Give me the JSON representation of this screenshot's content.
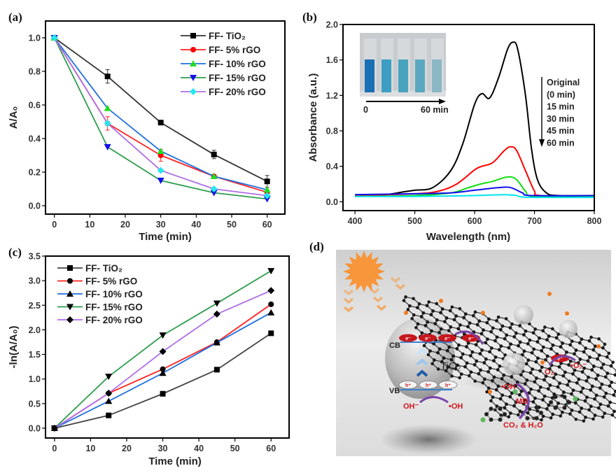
{
  "panel_labels": {
    "a": "(a)",
    "b": "(b)",
    "c": "(c)",
    "d": "(d)"
  },
  "chart_data": [
    {
      "id": "a",
      "type": "line",
      "xlabel": "Time (min)",
      "ylabel": "A/A₀",
      "xlim": [
        -2.5,
        65
      ],
      "ylim": [
        -0.05,
        1.1
      ],
      "xticks": [
        0,
        10,
        20,
        30,
        40,
        50,
        60
      ],
      "yticks": [
        0.0,
        0.2,
        0.4,
        0.6,
        0.8,
        1.0
      ],
      "ytick_decimals": 1,
      "legend": "top-right",
      "x": [
        0,
        15,
        30,
        45,
        60
      ],
      "series": [
        {
          "name": "FF- TiO₂",
          "line": "#333333",
          "marker": "square",
          "marker_color": "#000000",
          "values": [
            1.0,
            0.77,
            0.495,
            0.305,
            0.145
          ],
          "errors": [
            0,
            0.04,
            0.01,
            0.025,
            0.035
          ],
          "error_color": "#333333"
        },
        {
          "name": "FF- 5% rGO",
          "line": "#ff2020",
          "marker": "circle",
          "marker_color": "#ff0000",
          "values": [
            1.0,
            0.49,
            0.3,
            0.175,
            0.08
          ],
          "errors": [
            0,
            0.04,
            0.035,
            0,
            0
          ],
          "error_color": "#ff2020"
        },
        {
          "name": "FF- 10% rGO",
          "line": "#1f6fe0",
          "marker": "triangle-up",
          "marker_color": "#22dd22",
          "values": [
            1.0,
            0.58,
            0.325,
            0.175,
            0.095
          ]
        },
        {
          "name": "FF- 15% rGO",
          "line": "#2e9e4e",
          "marker": "triangle-down",
          "marker_color": "#1010ee",
          "values": [
            1.0,
            0.35,
            0.15,
            0.077,
            0.04
          ]
        },
        {
          "name": "FF- 20% rGO",
          "line": "#b06ee6",
          "marker": "diamond",
          "marker_color": "#22e8f0",
          "values": [
            1.0,
            0.49,
            0.21,
            0.1,
            0.06
          ]
        }
      ]
    },
    {
      "id": "b",
      "type": "line",
      "xlabel": "Wavelength (nm)",
      "ylabel": "Absorbance (a.u.)",
      "xlim": [
        380,
        800
      ],
      "ylim": [
        -0.1,
        2.0
      ],
      "xticks": [
        400,
        500,
        600,
        700,
        800
      ],
      "yticks": [
        0.0,
        0.4,
        0.8,
        1.2,
        1.6,
        2.0
      ],
      "ytick_decimals": 1,
      "series": [
        {
          "name": "Original (0 min)",
          "line": "#000000",
          "points": [
            [
              400,
              0.07
            ],
            [
              450,
              0.08
            ],
            [
              480,
              0.11
            ],
            [
              500,
              0.13
            ],
            [
              530,
              0.16
            ],
            [
              560,
              0.35
            ],
            [
              580,
              0.65
            ],
            [
              600,
              1.1
            ],
            [
              612,
              1.22
            ],
            [
              625,
              1.17
            ],
            [
              640,
              1.4
            ],
            [
              655,
              1.72
            ],
            [
              664,
              1.8
            ],
            [
              672,
              1.72
            ],
            [
              685,
              1.2
            ],
            [
              695,
              0.6
            ],
            [
              705,
              0.25
            ],
            [
              720,
              0.1
            ],
            [
              740,
              0.07
            ],
            [
              800,
              0.07
            ]
          ]
        },
        {
          "name": "15 min",
          "line": "#ff0000",
          "points": [
            [
              400,
              0.07
            ],
            [
              500,
              0.09
            ],
            [
              540,
              0.12
            ],
            [
              570,
              0.2
            ],
            [
              600,
              0.36
            ],
            [
              612,
              0.4
            ],
            [
              630,
              0.44
            ],
            [
              650,
              0.58
            ],
            [
              660,
              0.62
            ],
            [
              670,
              0.58
            ],
            [
              685,
              0.35
            ],
            [
              700,
              0.12
            ],
            [
              710,
              0.07
            ],
            [
              800,
              0.06
            ]
          ]
        },
        {
          "name": "30 min",
          "line": "#11dd11",
          "points": [
            [
              400,
              0.06
            ],
            [
              500,
              0.07
            ],
            [
              560,
              0.1
            ],
            [
              590,
              0.16
            ],
            [
              610,
              0.2
            ],
            [
              630,
              0.23
            ],
            [
              655,
              0.28
            ],
            [
              670,
              0.25
            ],
            [
              685,
              0.12
            ],
            [
              700,
              0.06
            ],
            [
              800,
              0.06
            ]
          ]
        },
        {
          "name": "45 min",
          "line": "#1010ee",
          "points": [
            [
              400,
              0.08
            ],
            [
              500,
              0.09
            ],
            [
              560,
              0.1
            ],
            [
              600,
              0.13
            ],
            [
              640,
              0.16
            ],
            [
              660,
              0.16
            ],
            [
              680,
              0.1
            ],
            [
              695,
              0.07
            ],
            [
              800,
              0.07
            ]
          ]
        },
        {
          "name": "60 min",
          "line": "#00e5f0",
          "points": [
            [
              400,
              0.06
            ],
            [
              500,
              0.06
            ],
            [
              600,
              0.07
            ],
            [
              650,
              0.08
            ],
            [
              670,
              0.07
            ],
            [
              690,
              0.05
            ],
            [
              800,
              0.05
            ]
          ]
        }
      ],
      "legend_lines": [
        "Original",
        "(0 min)",
        "15 min",
        "30 min",
        "45 min",
        "60 min"
      ],
      "inset": {
        "start_label": "0",
        "end_label": "60 min",
        "vial_colors": [
          "#1a6fb5",
          "#3b9ec2",
          "#4aa3bd",
          "#5aa8bf",
          "#8cb7c4"
        ]
      }
    },
    {
      "id": "c",
      "type": "line",
      "xlabel": "Time (min)",
      "ylabel": "-ln(A/A₀)",
      "xlim": [
        -2.5,
        65
      ],
      "ylim": [
        -0.2,
        3.5
      ],
      "xticks": [
        0,
        10,
        20,
        30,
        40,
        50,
        60
      ],
      "yticks": [
        0.0,
        0.5,
        1.0,
        1.5,
        2.0,
        2.5,
        3.0,
        3.5
      ],
      "ytick_decimals": 1,
      "legend": "top-left",
      "x": [
        0,
        15,
        30,
        45,
        60
      ],
      "series": [
        {
          "name": "FF- TiO₂",
          "line": "#444444",
          "marker": "square",
          "marker_color": "#000000",
          "values": [
            0,
            0.26,
            0.7,
            1.19,
            1.93
          ]
        },
        {
          "name": "FF- 5% rGO",
          "line": "#ff2020",
          "marker": "circle",
          "marker_color": "#000000",
          "values": [
            0,
            0.71,
            1.2,
            1.75,
            2.52
          ]
        },
        {
          "name": "FF- 10% rGO",
          "line": "#1f6fe0",
          "marker": "triangle-up",
          "marker_color": "#000000",
          "values": [
            0,
            0.55,
            1.12,
            1.74,
            2.35
          ]
        },
        {
          "name": "FF- 15% rGO",
          "line": "#2e9e4e",
          "marker": "triangle-down",
          "marker_color": "#000000",
          "values": [
            0,
            1.05,
            1.89,
            2.54,
            3.2
          ]
        },
        {
          "name": "FF- 20% rGO",
          "line": "#b06ee6",
          "marker": "diamond",
          "marker_color": "#000000",
          "values": [
            0,
            0.71,
            1.56,
            2.32,
            2.8
          ]
        }
      ]
    }
  ],
  "scheme": {
    "cb": "CB",
    "vb": "VB",
    "tio2": "TiO₂",
    "electron": "e⁻",
    "hole": "h⁺",
    "oh_minus": "OH⁻",
    "oh_radical": "•OH",
    "oh_radical_2": "•OH",
    "o2": "O₂",
    "o2_radical": "•O₂⁻",
    "mb": "MB",
    "products": "CO₂ & H₂O",
    "colors": {
      "sun": "#f7963a",
      "electron": "#c8161d",
      "band": "#3a7fd0",
      "arrow": "#7a45a8",
      "text_red": "#d1141b"
    }
  }
}
